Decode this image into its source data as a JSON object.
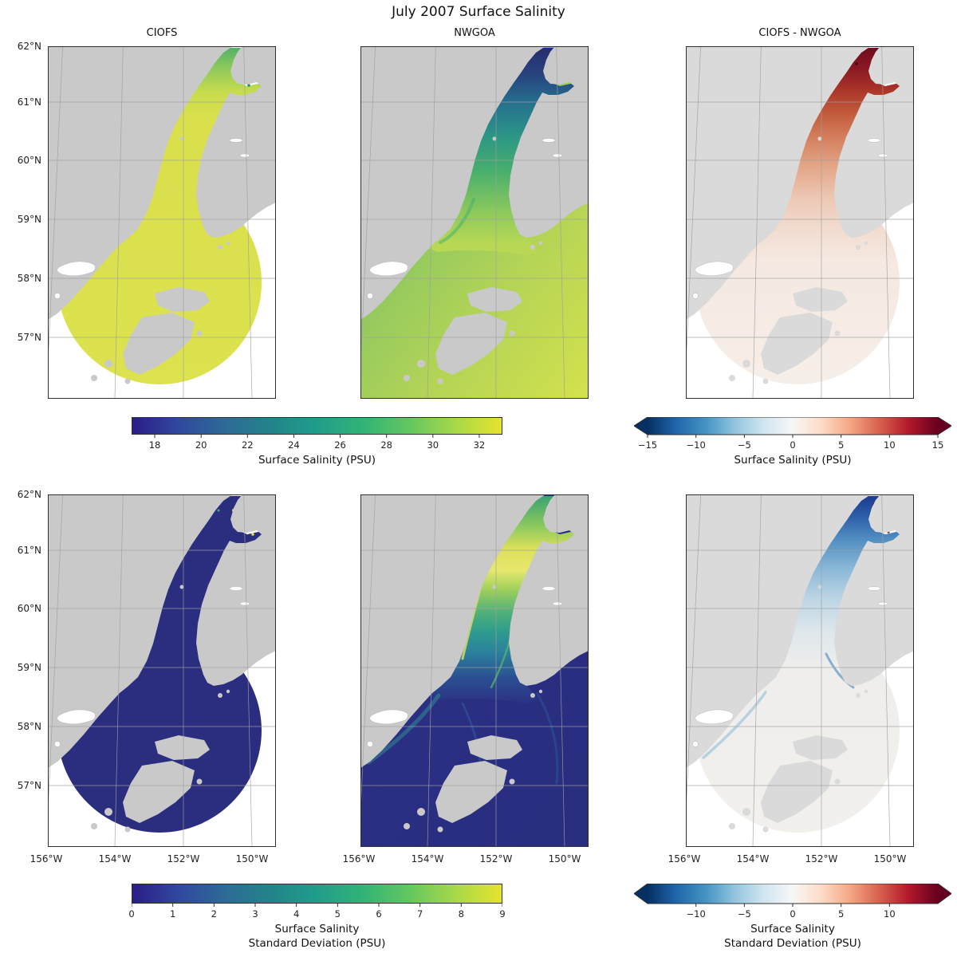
{
  "figure_title": "July 2007 Surface Salinity",
  "colors": {
    "background": "#ffffff",
    "land": "#c9c9c9",
    "land_light": "#dadada",
    "grid": "#a0a0a0",
    "frame": "#2f2f2f",
    "viridis": [
      "#2b1d87",
      "#31479e",
      "#2d6a96",
      "#23838b",
      "#1f9e89",
      "#32b377",
      "#64c75f",
      "#a8d94a",
      "#e6e32c"
    ],
    "rdbu": [
      "#053061",
      "#2166ac",
      "#4393c3",
      "#92c5de",
      "#d1e5f0",
      "#f7f7f7",
      "#fddbc7",
      "#f4a582",
      "#d6604d",
      "#b2182b",
      "#67001f"
    ]
  },
  "axes": {
    "lat_labels": [
      "62°N",
      "61°N",
      "60°N",
      "59°N",
      "58°N",
      "57°N"
    ],
    "lon_labels": [
      "156°W",
      "154°W",
      "152°W",
      "150°W"
    ]
  },
  "panels": [
    {
      "id": "ciofs-mean",
      "title": "CIOFS",
      "row": 0,
      "col": 0,
      "style": {
        "shapes": "domain",
        "land": "normal",
        "grad": [
          [
            0,
            "#4caf68"
          ],
          [
            0.06,
            "#8cc85c"
          ],
          [
            0.13,
            "#c8dc4d"
          ],
          [
            0.2,
            "#d9e04c"
          ],
          [
            1,
            "#dde24f"
          ]
        ]
      }
    },
    {
      "id": "nwgoa-mean",
      "title": "NWGOA",
      "row": 0,
      "col": 1,
      "style": {
        "shapes": "inlet",
        "land": "normal",
        "base": [
          [
            0,
            "#84c463"
          ],
          [
            0.5,
            "#b4d456"
          ],
          [
            1,
            "#d6e24c"
          ]
        ],
        "grad": [
          [
            0,
            "#262c6c"
          ],
          [
            0.08,
            "#27437e"
          ],
          [
            0.16,
            "#256f8e"
          ],
          [
            0.25,
            "#2b9487"
          ],
          [
            0.35,
            "#46ae6d"
          ],
          [
            0.47,
            "#8cc95c"
          ],
          [
            0.56,
            "#b8d854"
          ],
          [
            1,
            "#cede50"
          ]
        ]
      }
    },
    {
      "id": "diff-mean",
      "title": "CIOFS - NWGOA",
      "row": 0,
      "col": 2,
      "style": {
        "shapes": "domain",
        "land": "light",
        "grad": [
          [
            0,
            "#6e0a1e"
          ],
          [
            0.068,
            "#8c1a24"
          ],
          [
            0.124,
            "#aa3528"
          ],
          [
            0.192,
            "#c35c3c"
          ],
          [
            0.26,
            "#d47f5e"
          ],
          [
            0.34,
            "#e3a687"
          ],
          [
            0.43,
            "#edc7b4"
          ],
          [
            0.52,
            "#f2dcd0"
          ],
          [
            0.61,
            "#f5e9e1"
          ],
          [
            1,
            "#f6efe9"
          ]
        ]
      }
    },
    {
      "id": "ciofs-std",
      "row": 1,
      "col": 0,
      "style": {
        "shapes": "domain",
        "land": "normal",
        "grad": [
          [
            0,
            "#2b2d7e"
          ],
          [
            1,
            "#2b2d7e"
          ]
        ]
      }
    },
    {
      "id": "nwgoa-std",
      "row": 1,
      "col": 1,
      "style": {
        "shapes": "inlet",
        "land": "normal",
        "base": [
          [
            0,
            "#2b2f84"
          ],
          [
            1,
            "#2a2e7e"
          ]
        ],
        "grad": [
          [
            0,
            "#35a072"
          ],
          [
            0.09,
            "#8cc95f"
          ],
          [
            0.155,
            "#dde059"
          ],
          [
            0.215,
            "#e6e86e"
          ],
          [
            0.27,
            "#a0d05c"
          ],
          [
            0.33,
            "#55b277"
          ],
          [
            0.385,
            "#2f9e8c"
          ],
          [
            0.45,
            "#2b7f9c"
          ],
          [
            0.52,
            "#2b4f92"
          ],
          [
            0.585,
            "#2b3484"
          ],
          [
            1,
            "#2b3084"
          ]
        ]
      }
    },
    {
      "id": "diff-std",
      "row": 1,
      "col": 2,
      "style": {
        "shapes": "domain",
        "land": "light",
        "grad": [
          [
            0,
            "#1c3a8e"
          ],
          [
            0.057,
            "#2a5aa6"
          ],
          [
            0.124,
            "#4f8cc0"
          ],
          [
            0.204,
            "#86b5d6"
          ],
          [
            0.294,
            "#bcd5e4"
          ],
          [
            0.396,
            "#e0e8ec"
          ],
          [
            0.498,
            "#efeeec"
          ],
          [
            1,
            "#f2f0ec"
          ]
        ]
      }
    }
  ],
  "colorbars": [
    {
      "id": "cb-salinity",
      "row": 0,
      "side": "left",
      "cmap": "viridis",
      "extend": "neither",
      "vmin": 17,
      "vmax": 33,
      "label_lines": [
        "Surface Salinity (PSU)"
      ],
      "ticks": [
        {
          "v": 18,
          "label": "18"
        },
        {
          "v": 20,
          "label": "20"
        },
        {
          "v": 22,
          "label": "22"
        },
        {
          "v": 24,
          "label": "24"
        },
        {
          "v": 26,
          "label": "26"
        },
        {
          "v": 28,
          "label": "28"
        },
        {
          "v": 30,
          "label": "30"
        },
        {
          "v": 32,
          "label": "32"
        }
      ]
    },
    {
      "id": "cb-salinity-diff",
      "row": 0,
      "side": "right",
      "cmap": "rdbu",
      "extend": "both",
      "vmin": -15,
      "vmax": 15,
      "label_lines": [
        "Surface Salinity (PSU)"
      ],
      "ticks": [
        {
          "v": -15,
          "label": "−15"
        },
        {
          "v": -10,
          "label": "−10"
        },
        {
          "v": -5,
          "label": "−5"
        },
        {
          "v": 0,
          "label": "0"
        },
        {
          "v": 5,
          "label": "5"
        },
        {
          "v": 10,
          "label": "10"
        },
        {
          "v": 15,
          "label": "15"
        }
      ]
    },
    {
      "id": "cb-std",
      "row": 1,
      "side": "left",
      "cmap": "viridis",
      "extend": "neither",
      "vmin": 0,
      "vmax": 9,
      "label_lines": [
        "Surface Salinity",
        "Standard Deviation (PSU)"
      ],
      "ticks": [
        {
          "v": 0,
          "label": "0"
        },
        {
          "v": 1,
          "label": "1"
        },
        {
          "v": 2,
          "label": "2"
        },
        {
          "v": 3,
          "label": "3"
        },
        {
          "v": 4,
          "label": "4"
        },
        {
          "v": 5,
          "label": "5"
        },
        {
          "v": 6,
          "label": "6"
        },
        {
          "v": 7,
          "label": "7"
        },
        {
          "v": 8,
          "label": "8"
        },
        {
          "v": 9,
          "label": "9"
        }
      ]
    },
    {
      "id": "cb-std-diff",
      "row": 1,
      "side": "right",
      "cmap": "rdbu",
      "extend": "both",
      "vmin": -15,
      "vmax": 15,
      "label_lines": [
        "Surface Salinity",
        "Standard Deviation (PSU)"
      ],
      "ticks": [
        {
          "v": -10,
          "label": "−10"
        },
        {
          "v": -5,
          "label": "−5"
        },
        {
          "v": 0,
          "label": "0"
        },
        {
          "v": 5,
          "label": "5"
        },
        {
          "v": 10,
          "label": "10"
        }
      ]
    }
  ],
  "chart_data": [
    {
      "type": "heatmap",
      "title": "CIOFS",
      "quantity": "Surface Salinity (PSU)",
      "colormap": "viridis-like",
      "vmin": 17,
      "vmax": 33,
      "x_ticks": [
        "156°W",
        "154°W",
        "152°W",
        "150°W"
      ],
      "y_ticks": [
        "62°N",
        "61°N",
        "60°N",
        "59°N",
        "58°N",
        "57°N"
      ],
      "values_summary": {
        "upper_cook_inlet": "27–30 PSU (green)",
        "rest_of_domain": "30–31.5 PSU (nearly uniform yellow-green)"
      },
      "notes": "Field shown only inside CIOFS model domain: Cook Inlet plus a fan-shaped region ending in a circular arc near 56.3°N; gray = land, white = outside domain"
    },
    {
      "type": "heatmap",
      "title": "NWGOA",
      "quantity": "Surface Salinity (PSU)",
      "colormap": "viridis-like",
      "vmin": 17,
      "vmax": 33,
      "x_ticks": [
        "156°W",
        "154°W",
        "152°W",
        "150°W"
      ],
      "y_ticks": [
        "62°N",
        "61°N",
        "60°N",
        "59°N",
        "58°N",
        "57°N"
      ],
      "values_summary": {
        "upper_cook_inlet": "15–22 PSU (dark blue)",
        "mid_inlet_and_coast": "24–30 PSU (teal-green)",
        "gulf_of_alaska": "31–32.5 PSU (yellow-green)"
      },
      "notes": "Field covers entire ocean area of the map"
    },
    {
      "type": "heatmap",
      "title": "CIOFS - NWGOA",
      "quantity": "Surface Salinity difference (PSU)",
      "colormap": "RdBu_r",
      "vmin": -15,
      "vmax": 15,
      "x_ticks": [
        "156°W",
        "154°W",
        "152°W",
        "150°W"
      ],
      "y_ticks": [
        "62°N",
        "61°N",
        "60°N",
        "59°N",
        "58°N",
        "57°N"
      ],
      "values_summary": {
        "inlet_head": "+10 to +15 PSU (dark red)",
        "through_inlet": "+2 to +8 PSU (salmon)",
        "outer_domain": "≈0 ± 1 PSU (near white)"
      },
      "notes": "Difference only where both model domains overlap (CIOFS domain)"
    },
    {
      "type": "heatmap",
      "title": "CIOFS (bottom-left)",
      "quantity": "Surface Salinity Standard Deviation (PSU)",
      "colormap": "viridis-like",
      "vmin": 0,
      "vmax": 9,
      "values_summary": {
        "whole_domain": "≈0–0.5 PSU (uniform dark indigo)",
        "inlet_arms": "small spots up to ~5 PSU"
      },
      "notes": "Same CIOFS domain footprint as top-left panel"
    },
    {
      "type": "heatmap",
      "title": "NWGOA (bottom-middle)",
      "quantity": "Surface Salinity Standard Deviation (PSU)",
      "colormap": "viridis-like",
      "vmin": 0,
      "vmax": 9,
      "values_summary": {
        "gulf_of_alaska": "0–1 PSU (dark)",
        "coastal_plumes_shelikof": "2–5 PSU (teal filaments)",
        "upper_inlet": "5–9 PSU (yellow patches)"
      }
    },
    {
      "type": "heatmap",
      "title": "CIOFS - NWGOA (bottom-right)",
      "quantity": "Surface Salinity Standard Deviation difference (PSU)",
      "colormap": "RdBu_r",
      "vmin": -15,
      "vmax": 15,
      "ticks_shown": [
        -10,
        -5,
        0,
        5,
        10
      ],
      "values_summary": {
        "inlet_channel": "−3 to −9 PSU (blue; NWGOA more variable)",
        "upper_inlet": "−8 to −10 PSU with a few small positive specks",
        "outer_domain": "≈0 PSU (near white)"
      }
    }
  ]
}
